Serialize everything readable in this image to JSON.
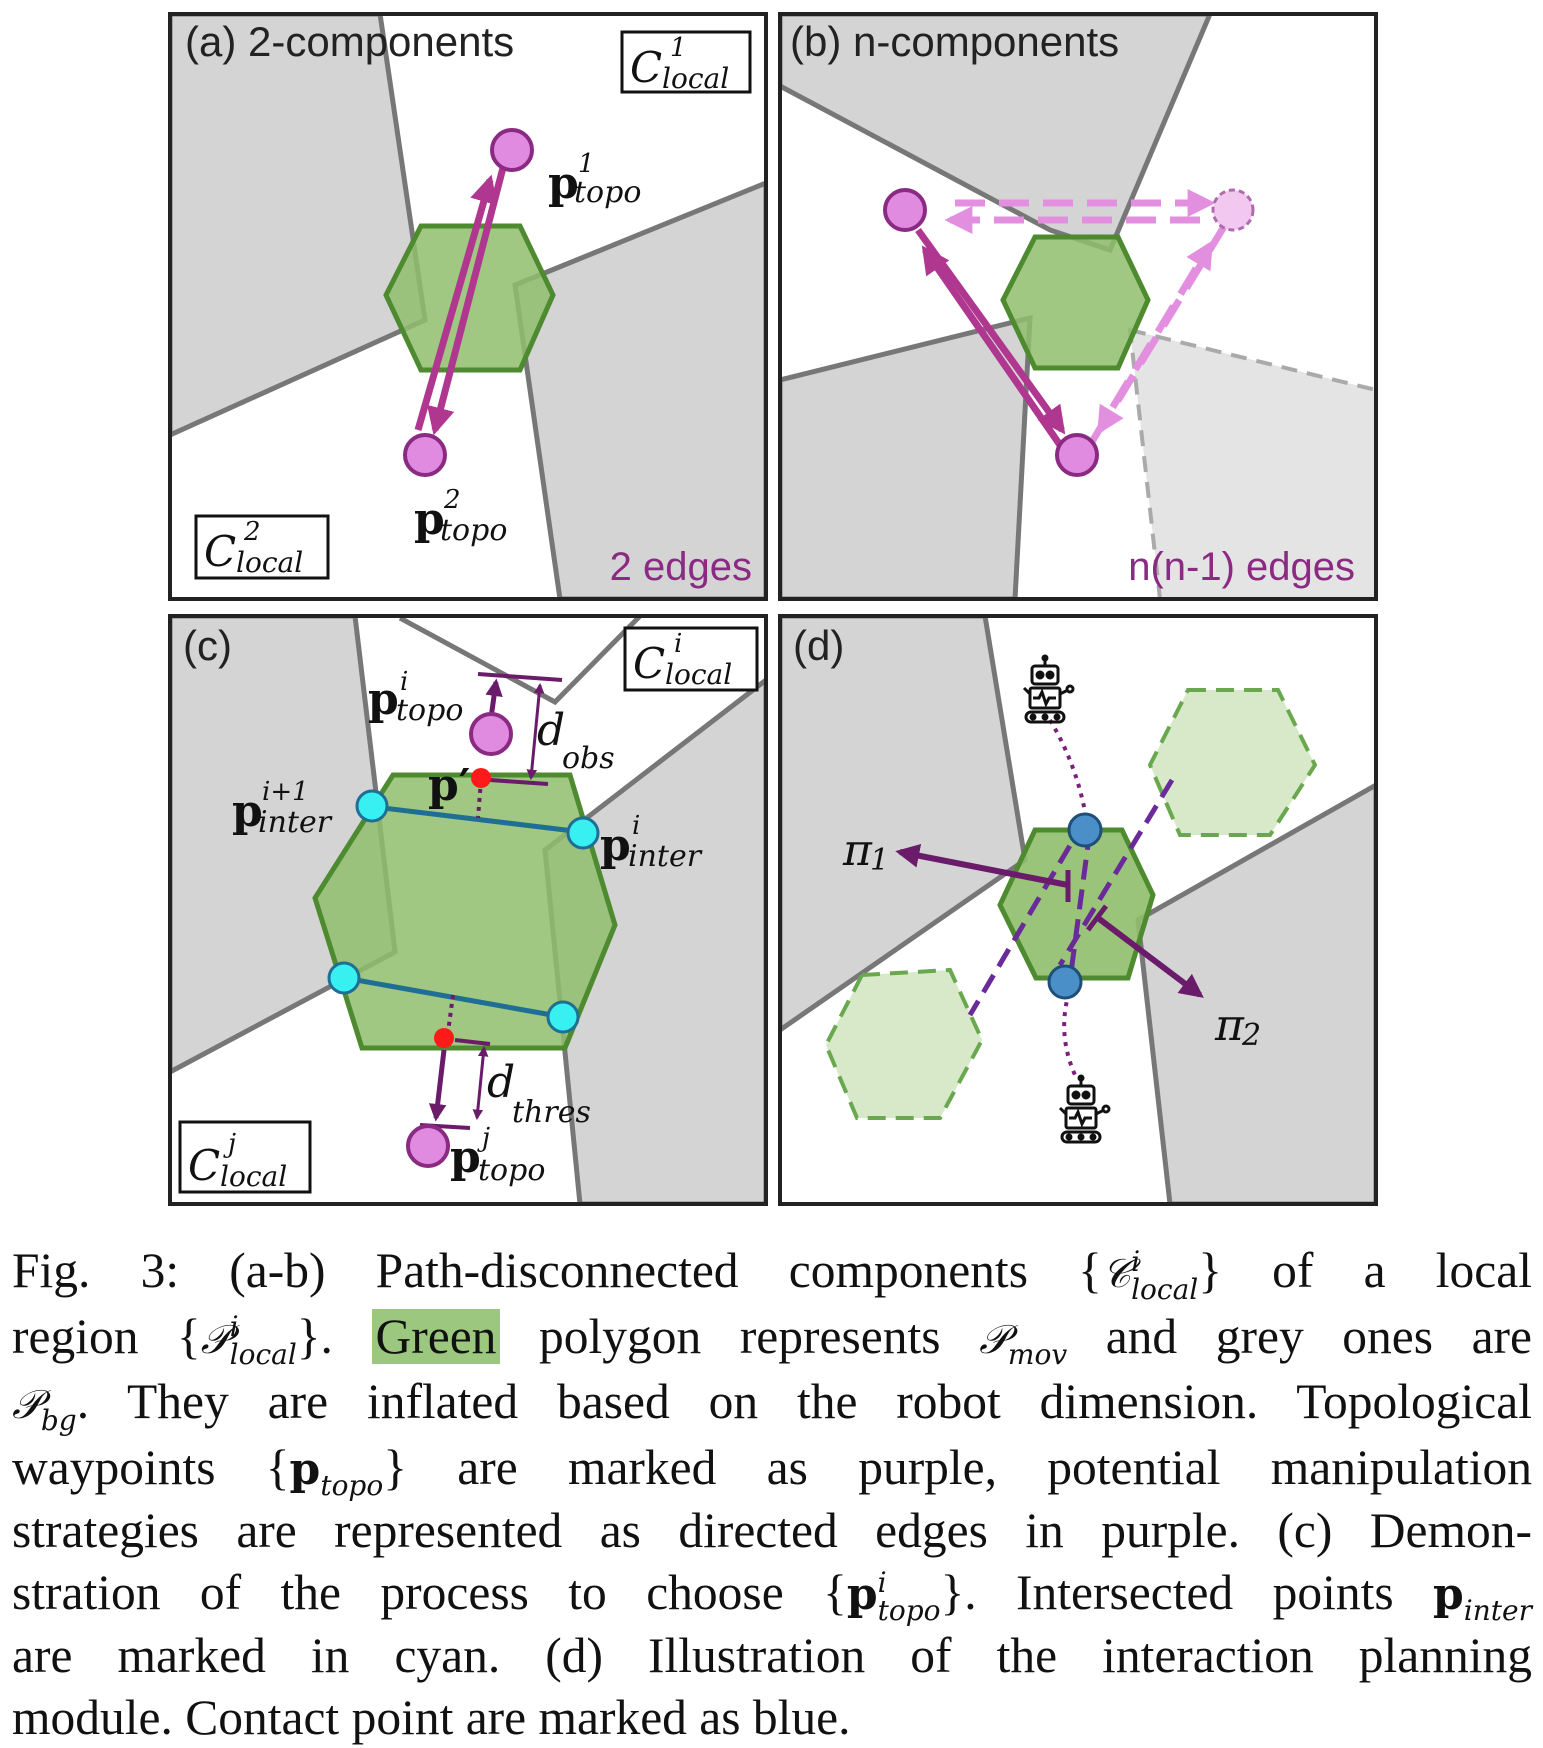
{
  "panels": {
    "a": {
      "title": "(a) 2-components",
      "edges_label": "2 edges",
      "box1": {
        "c": "C",
        "sup": "1",
        "sub": "local"
      },
      "box2": {
        "c": "C",
        "sup": "2",
        "sub": "local"
      },
      "p1": {
        "p": "p",
        "sup": "1",
        "sub": "topo"
      },
      "p2": {
        "p": "p",
        "sup": "2",
        "sub": "topo"
      }
    },
    "b": {
      "title": "(b) n-components",
      "edges_label": "n(n-1) edges"
    },
    "c": {
      "title": "(c)",
      "box_i": {
        "c": "C",
        "sup": "i",
        "sub": "local"
      },
      "box_j": {
        "c": "C",
        "sup": "j",
        "sub": "local"
      },
      "p_topo_i": {
        "p": "p",
        "sup": "i",
        "sub": "topo"
      },
      "p_topo_j": {
        "p": "p",
        "sup": "j",
        "sub": "topo"
      },
      "p_inter_i1": {
        "p": "p",
        "sup": "i+1",
        "sub": "inter"
      },
      "p_inter_i": {
        "p": "p",
        "sup": "i",
        "sub": "inter"
      },
      "p_prime": "p′",
      "d_obs": {
        "d": "d",
        "sub": "obs"
      },
      "d_thres": {
        "d": "d",
        "sub": "thres"
      }
    },
    "d": {
      "title": "(d)",
      "pi1": {
        "pi": "π",
        "sub": "1"
      },
      "pi2": {
        "pi": "π",
        "sub": "2"
      },
      "icons": [
        "robot-icon",
        "robot-icon"
      ]
    }
  },
  "colors": {
    "green_fill": "#8fbe6c",
    "green_stroke": "#4e8a2f",
    "grey_fill": "#d4d4d4",
    "grey_stroke": "#777777",
    "purple": "#b0378f",
    "purple_light": "#e38fe0",
    "dark_purple": "#6a1b6a",
    "cyan": "#38f0f0",
    "blue": "#4a8fc8",
    "red": "#ff1a1a",
    "caption_highlight": "#9cc77f"
  },
  "caption": {
    "lines": [
      [
        "Fig. 3: (a-b) Path-disconnected components {",
        {
          "m": "C",
          "sup": "i",
          "sub": "local"
        },
        "} of a local"
      ],
      [
        "region {",
        {
          "m": "P",
          "sup": "i",
          "sub": "local"
        },
        "}. ",
        {
          "hl": "Green"
        },
        " polygon represents ",
        {
          "m": "P",
          "sub": "mov"
        },
        " and grey ones are"
      ],
      [
        {
          "m": "P",
          "sub": "bg"
        },
        ". They are inflated based on the robot dimension. Topological"
      ],
      [
        "waypoints {",
        {
          "b": "p",
          "sub": "topo"
        },
        "} are marked as purple, potential manipulation"
      ],
      [
        "strategies are represented as directed edges in purple. (c) Demon-"
      ],
      [
        "stration of the process to choose {",
        {
          "b": "p",
          "sup": "i",
          "sub": "topo"
        },
        "}. Intersected points ",
        {
          "b": "p",
          "sub": "inter"
        }
      ],
      [
        "are marked in cyan. (d) Illustration of the interaction planning"
      ],
      [
        "module. Contact point are marked as blue."
      ]
    ]
  }
}
